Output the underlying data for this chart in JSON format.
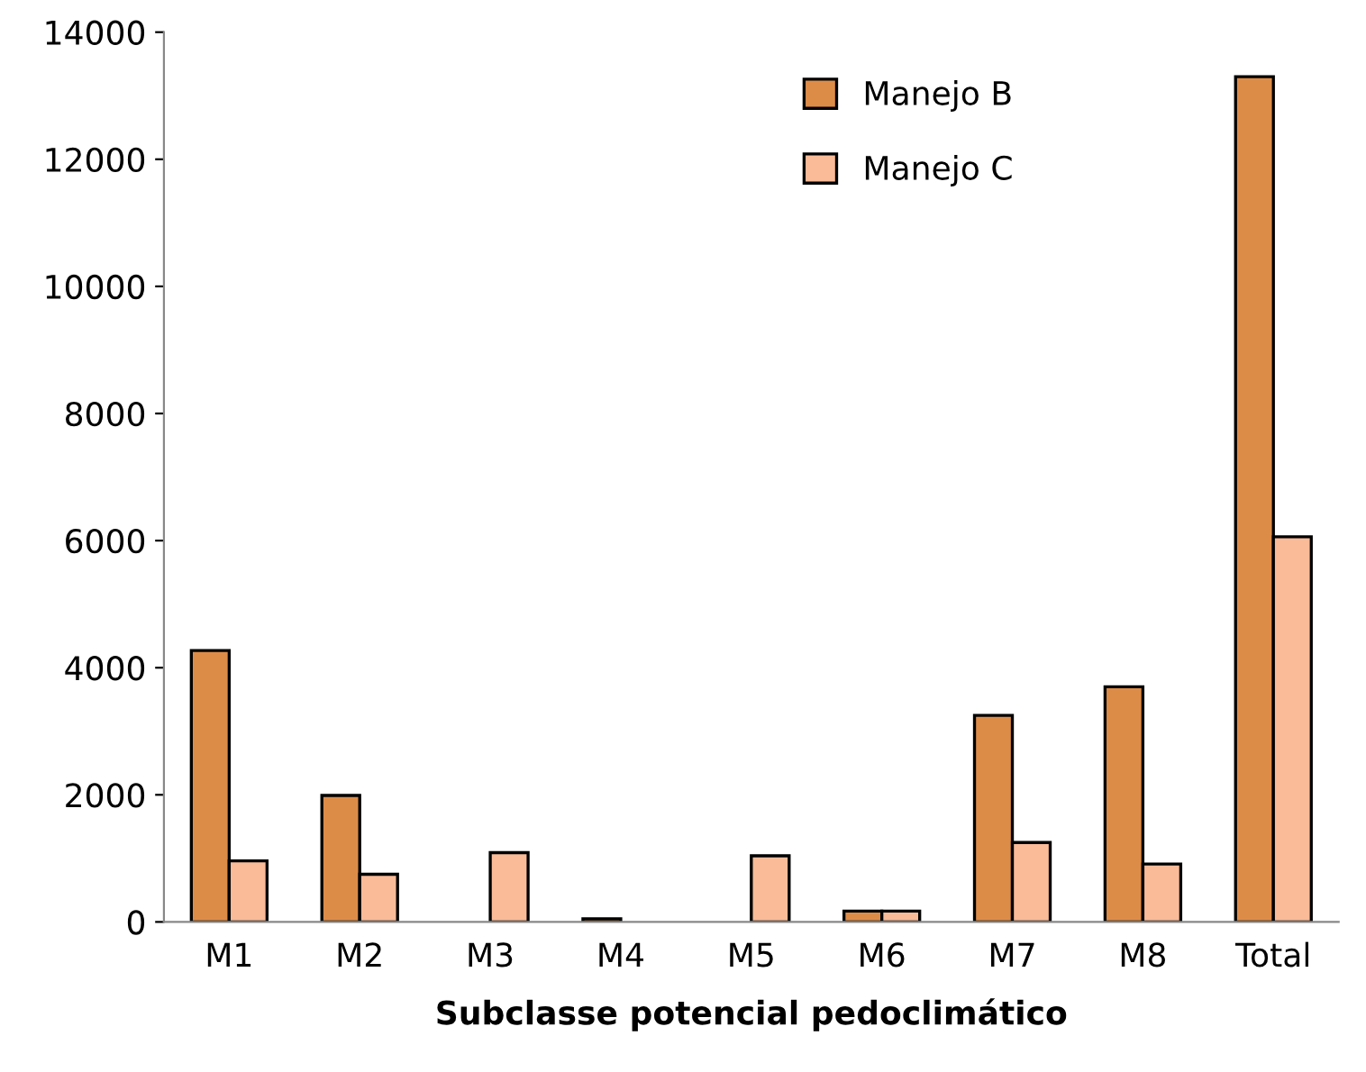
{
  "chart_data": {
    "type": "bar",
    "xlabel": "Subclasse potencial pedoclimático",
    "categories": [
      "M1",
      "M2",
      "M3",
      "M4",
      "M5",
      "M6",
      "M7",
      "M8",
      "Total"
    ],
    "series": [
      {
        "name": "Manejo B",
        "color": "#dd8c48",
        "values": [
          4270,
          1990,
          null,
          50,
          null,
          170,
          3250,
          3700,
          13300
        ]
      },
      {
        "name": "Manejo C",
        "color": "#f9bb98",
        "values": [
          960,
          750,
          1090,
          null,
          1040,
          170,
          1250,
          910,
          6060
        ]
      }
    ],
    "ylim": [
      0,
      14000
    ],
    "yticks": [
      0,
      2000,
      4000,
      6000,
      8000,
      10000,
      12000,
      14000
    ],
    "grid": false,
    "legend": "top right"
  }
}
